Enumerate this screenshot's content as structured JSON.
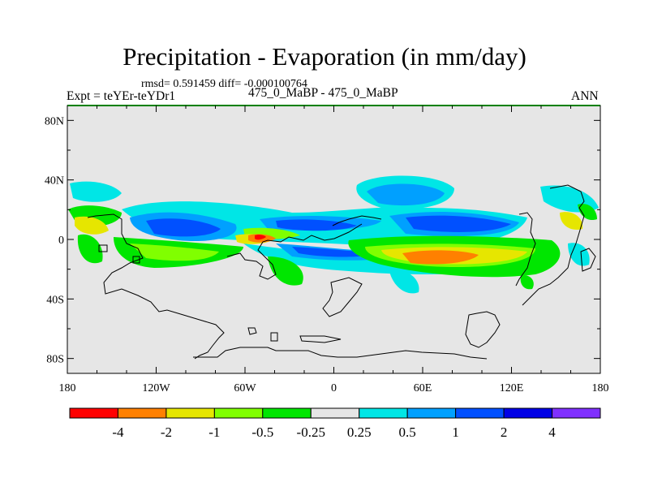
{
  "header": {
    "title": "Precipitation - Evaporation (in mm/day)",
    "stats": "rmsd= 0.591459 diff= -0.000100764",
    "expt": "Expt = teYEr-teYDr1",
    "cases": "475_0_MaBP - 475_0_MaBP",
    "season": "ANN"
  },
  "colors": {
    "land_outline": "#000000",
    "frame_top": "#008000",
    "background_field": "#e6e6e6"
  },
  "chart_data": {
    "type": "heatmap",
    "title": "Precipitation - Evaporation (in mm/day)",
    "x_ticks": [
      "180",
      "120W",
      "60W",
      "0",
      "60E",
      "120E",
      "180"
    ],
    "x_values": [
      -180,
      -120,
      -60,
      0,
      60,
      120,
      180
    ],
    "y_ticks": [
      "80N",
      "40N",
      "0",
      "40S",
      "80S"
    ],
    "y_values": [
      80,
      40,
      0,
      -40,
      -80
    ],
    "xlim": [
      -180,
      180
    ],
    "ylim": [
      -90,
      90
    ],
    "colorbar": {
      "labels": [
        "-4",
        "-2",
        "-1",
        "-0.5",
        "-0.25",
        "0.25",
        "0.5",
        "1",
        "2",
        "4"
      ],
      "colors": [
        "#ff0000",
        "#ff8000",
        "#e6e600",
        "#80ff00",
        "#00e600",
        "#e6e6e6",
        "#00e6e6",
        "#00a0ff",
        "#0050ff",
        "#0000e6",
        "#8030ff"
      ]
    }
  }
}
